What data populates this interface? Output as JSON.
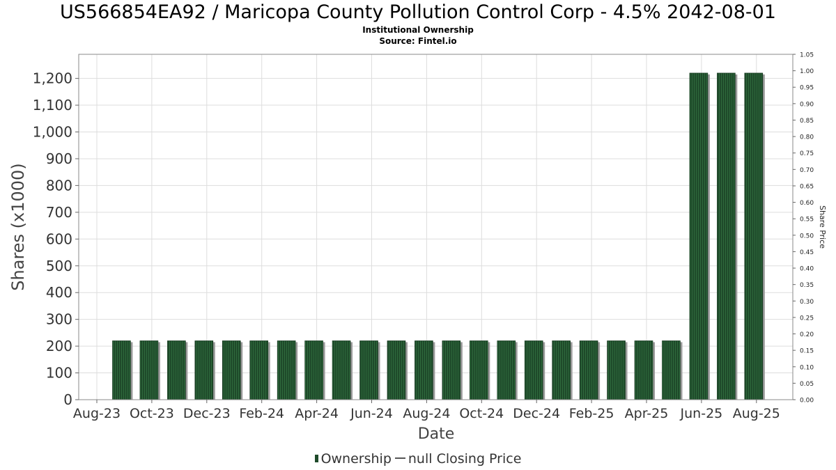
{
  "header": {
    "title": "US566854EA92 / Maricopa County Pollution Control Corp - 4.5% 2042-08-01",
    "subtitle": "Institutional Ownership",
    "source": "Source: Fintel.io"
  },
  "legend": {
    "ownership": "Ownership",
    "price": "null Closing Price"
  },
  "colors": {
    "bar": "#1e4a2a",
    "bar_shadow": "#9a9a9a",
    "grid": "#dddddd",
    "frame": "#888888"
  },
  "chart_data": {
    "type": "bar",
    "title": "US566854EA92 / Maricopa County Pollution Control Corp - 4.5% 2042-08-01",
    "xlabel": "Date",
    "ylabel": "Shares (x1000)",
    "y2label": "Share Price",
    "ylim": [
      0,
      1290
    ],
    "y2lim": [
      0,
      1.05
    ],
    "grid": true,
    "legend_position": "bottom",
    "x_tick_labels": [
      "Aug-23",
      "Oct-23",
      "Dec-23",
      "Feb-24",
      "Apr-24",
      "Jun-24",
      "Aug-24",
      "Oct-24",
      "Dec-24",
      "Feb-25",
      "Apr-25",
      "Jun-25",
      "Aug-25"
    ],
    "y_ticks": [
      0,
      100,
      200,
      300,
      400,
      500,
      600,
      700,
      800,
      900,
      1000,
      1100,
      1200
    ],
    "y_tick_labels": [
      "0",
      "100",
      "200",
      "300",
      "400",
      "500",
      "600",
      "700",
      "800",
      "900",
      "1,000",
      "1,100",
      "1,200"
    ],
    "y2_ticks": [
      "0.00",
      "0.05",
      "0.10",
      "0.15",
      "0.20",
      "0.25",
      "0.30",
      "0.35",
      "0.40",
      "0.45",
      "0.50",
      "0.55",
      "0.60",
      "0.65",
      "0.70",
      "0.75",
      "0.80",
      "0.85",
      "0.90",
      "0.95",
      "1.00",
      "1.05"
    ],
    "series": [
      {
        "name": "Ownership",
        "x": [
          "2023-09",
          "2023-10",
          "2023-11",
          "2023-12",
          "2024-01",
          "2024-02",
          "2024-03",
          "2024-04",
          "2024-05",
          "2024-06",
          "2024-07",
          "2024-08",
          "2024-09",
          "2024-10",
          "2024-11",
          "2024-12",
          "2025-01",
          "2025-02",
          "2025-03",
          "2025-04",
          "2025-05",
          "2025-06",
          "2025-07",
          "2025-08"
        ],
        "values": [
          220,
          220,
          220,
          220,
          220,
          220,
          220,
          220,
          220,
          220,
          220,
          220,
          220,
          220,
          220,
          220,
          220,
          220,
          220,
          220,
          220,
          1220,
          1220,
          1220
        ]
      },
      {
        "name": "null Closing Price",
        "values": []
      }
    ]
  }
}
